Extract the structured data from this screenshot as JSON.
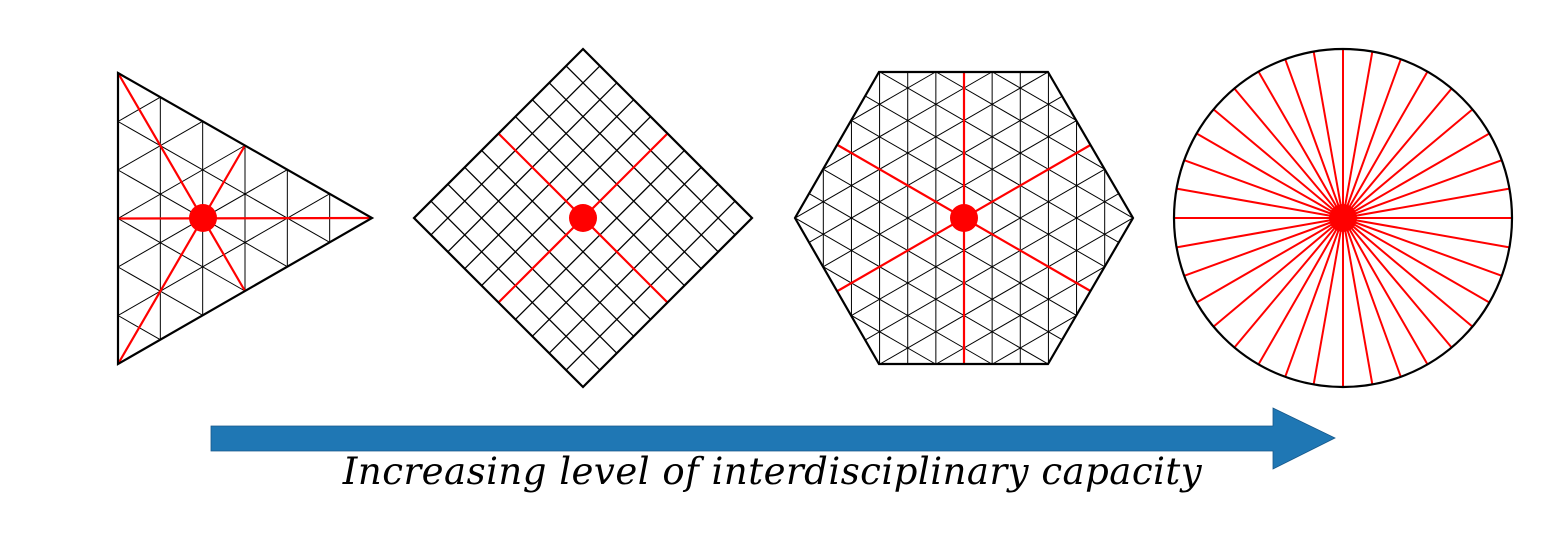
{
  "caption": "Increasing level of interdisciplinary capacity",
  "colors": {
    "outline": "#000000",
    "grid": "#000000",
    "axis": "#ff0000",
    "center": "#ff0000",
    "arrow": "#1f77b4"
  },
  "shapes": [
    {
      "name": "triangle",
      "grid_divisions": 6,
      "red_axes": 3
    },
    {
      "name": "square",
      "grid_divisions": 10,
      "red_axes": 2
    },
    {
      "name": "hexagon",
      "grid_divisions": 12,
      "red_axes": 3
    },
    {
      "name": "circle",
      "red_axes": 36
    }
  ]
}
